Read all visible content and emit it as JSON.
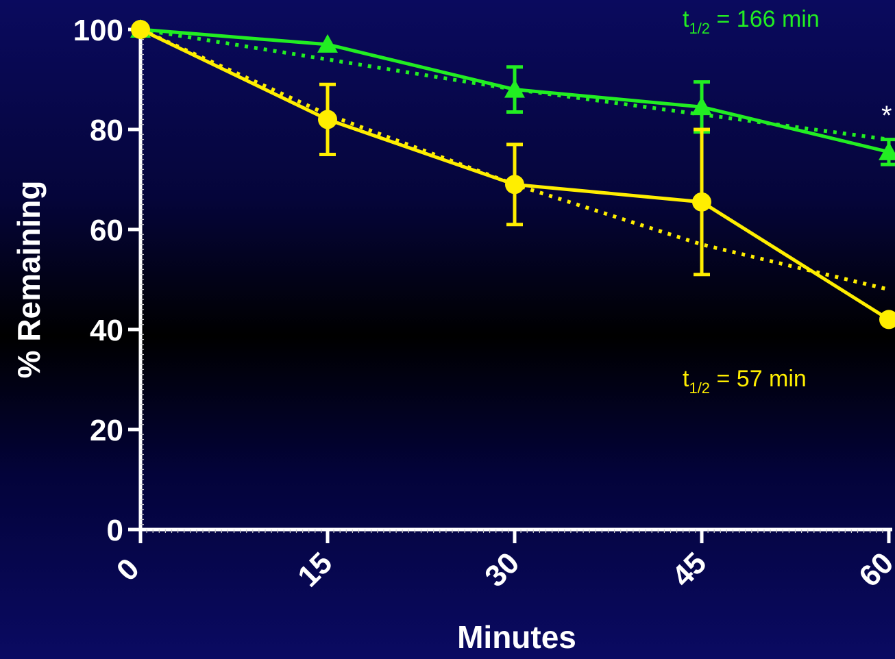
{
  "chart_data": {
    "type": "line",
    "xlabel": "Minutes",
    "ylabel": "% Remaining",
    "x": [
      0,
      15,
      30,
      45,
      60
    ],
    "xticks": [
      "0",
      "15",
      "30",
      "45",
      "60"
    ],
    "yticks": [
      "0",
      "20",
      "40",
      "60",
      "80",
      "100"
    ],
    "xlim": [
      0,
      60
    ],
    "ylim": [
      0,
      100
    ],
    "grid": false,
    "series": [
      {
        "key": "green",
        "color": "#22ee22",
        "marker": "triangle",
        "values": [
          100,
          97,
          88,
          84.5,
          75.5
        ],
        "errors": [
          0,
          0,
          4.5,
          5,
          2.5
        ],
        "fit": [
          100,
          94,
          88,
          83,
          78
        ]
      },
      {
        "key": "yellow",
        "color": "#ffee00",
        "marker": "circle",
        "values": [
          100,
          82,
          69,
          65.5,
          42
        ],
        "errors": [
          0,
          7,
          8,
          14.5,
          0
        ],
        "fit": [
          100,
          83,
          69,
          57,
          48
        ]
      }
    ],
    "annotations": [
      {
        "series": "green",
        "main": "t",
        "sub": "1/2",
        "rest": " = 166 min"
      },
      {
        "series": "yellow",
        "main": "t",
        "sub": "1/2",
        "rest": " = 57 min"
      },
      {
        "text": "*",
        "at_x": 60,
        "near_series": "green"
      }
    ]
  }
}
